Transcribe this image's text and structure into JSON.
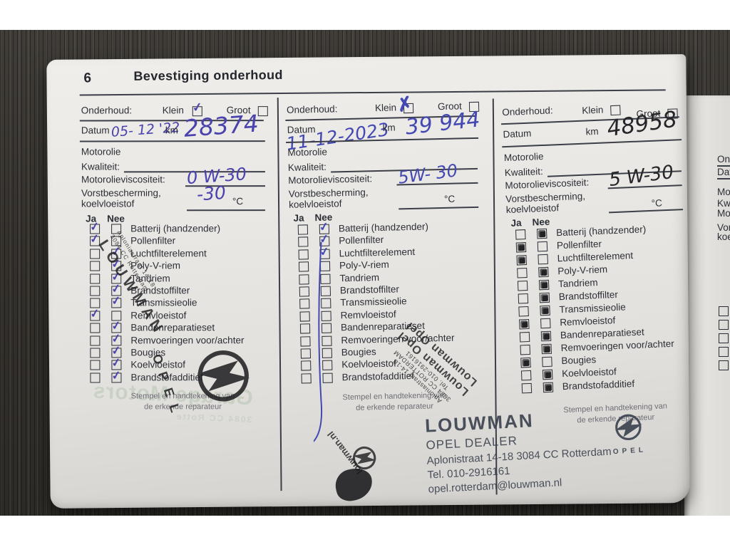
{
  "header": {
    "page_number": "6",
    "title": "Bevestiging onderhoud"
  },
  "labels": {
    "onderhoud": "Onderhoud:",
    "klein": "Klein",
    "groot": "Groot",
    "datum": "Datum",
    "km": "km",
    "motorolie": "Motorolie",
    "kwaliteit": "Kwaliteit:",
    "viscositeit": "Motorolieviscositeit:",
    "vorst1": "Vorstbescherming,",
    "vorst2": "koelvloeistof",
    "celsius": "°C",
    "ja": "Ja",
    "nee": "Nee",
    "stamp_note1": "Stempel en handtekening van",
    "stamp_note2": "de erkende reparateur"
  },
  "checklist": [
    "Batterij (handzender)",
    "Pollenfilter",
    "Luchtfilterelement",
    "Poly-V-riem",
    "Tandriem",
    "Brandstoffilter",
    "Transmissieolie",
    "Remvloeistof",
    "Bandenreparatieset",
    "Remvoeringen voor/achter",
    "Bougies",
    "Koelvloeistof",
    "Brandstofadditief"
  ],
  "columns": [
    {
      "klein_checked": true,
      "groot_checked": false,
      "datum": "05- 12 '22",
      "km": "28374",
      "viscosity": "0 W-30",
      "frost": "-30",
      "ink_color": "#4a42ad",
      "mark_style": "check",
      "strike": false,
      "marks": [
        "ja",
        "ja",
        "nee",
        "nee",
        "nee",
        "nee",
        "nee",
        "ja",
        "nee",
        "nee",
        "nee",
        "nee",
        "nee"
      ]
    },
    {
      "klein_checked": true,
      "groot_checked": false,
      "datum": "11-12-2023",
      "km": "39 944",
      "viscosity": "5W- 30",
      "frost": "",
      "ink_color": "#4348b2",
      "mark_style": "check",
      "strike": true,
      "marks": [
        "nee",
        "nee",
        "nee",
        "",
        "",
        "",
        "",
        "",
        "",
        "",
        "",
        "",
        ""
      ]
    },
    {
      "klein_checked": false,
      "groot_checked": false,
      "datum": "",
      "km": "48958",
      "viscosity": "5 W-30",
      "frost": "",
      "ink_color": "#26262a",
      "mark_style": "fill",
      "strike": false,
      "marks": [
        "nee",
        "ja",
        "ja",
        "nee",
        "nee",
        "nee",
        "nee",
        "ja",
        "nee",
        "nee",
        "ja",
        "nee",
        "nee"
      ]
    }
  ],
  "stamps": {
    "diag": {
      "name": "LOUWMAN",
      "addr1": "Aploniastraat 14-18",
      "addr2": "3084 CC Rotterdam"
    },
    "inverted": {
      "big1": "Louwman Opel",
      "big2": "Louwman Opel",
      "addr1": "Aploniastraat 14-18",
      "addr2": "3084 CC ROTTERDAM",
      "addr3": "Tel. 010-2916161",
      "web": "louwman.nl"
    },
    "dealer": {
      "name": "LOUWMAN",
      "line2": "OPEL DEALER",
      "line3": "Aplonistraat 14-18  3084 CC Rotterdam",
      "line4": "Tel. 010-2916161",
      "line5": "opel.rotterdam@louwman.nl",
      "brand": "OPEL"
    },
    "ghost1": "Garage Motors",
    "ghost2": "3084 CC Rotte"
  }
}
